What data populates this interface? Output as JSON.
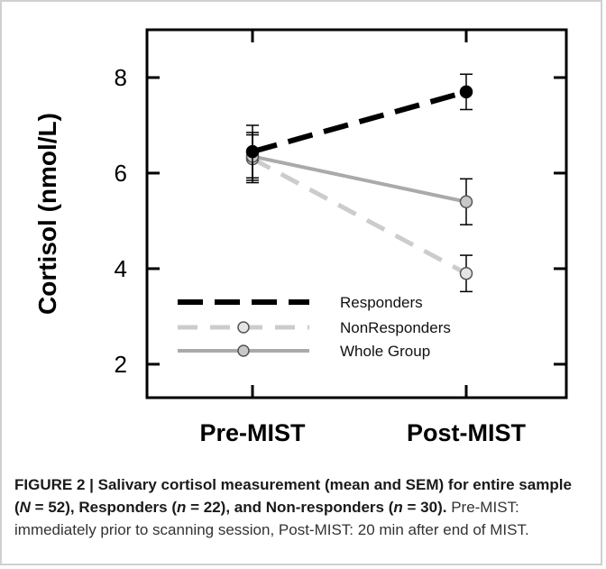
{
  "chart_data": {
    "type": "line",
    "ylabel": "Cortisol (nmol/L)",
    "xlabel": "",
    "categories": [
      "Pre-MIST",
      "Post-MIST"
    ],
    "yticks": [
      2,
      4,
      6,
      8
    ],
    "ylim": [
      1.3,
      9.0
    ],
    "grid": false,
    "legend_position": "bottom-center",
    "series": [
      {
        "name": "Responders",
        "values": [
          6.45,
          7.7
        ],
        "err": [
          0.55,
          0.37
        ],
        "color": "#000000",
        "dash": "long-dash",
        "marker": "filled-black"
      },
      {
        "name": "NonResponders",
        "values": [
          6.3,
          3.9
        ],
        "err": [
          0.5,
          0.38
        ],
        "color": "#cccccc",
        "dash": "dash",
        "marker": "open-light"
      },
      {
        "name": "Whole Group",
        "values": [
          6.35,
          5.4
        ],
        "err": [
          0.5,
          0.48
        ],
        "color": "#aaaaaa",
        "dash": "solid",
        "marker": "gray"
      }
    ]
  },
  "caption": {
    "figure_label": "FIGURE 2 | Salivary cortisol measurement (mean and SEM) for entire sample (",
    "n_sym": "N",
    "n_val": " = 52), Responders (",
    "n2_sym": "n",
    "n2_val": " = 22), and Non-responders (",
    "n3_sym": "n",
    "n3_val": " = 30).",
    "description": "Pre-MIST: immediately prior to scanning session, Post-MIST: 20 min after end of MIST."
  }
}
